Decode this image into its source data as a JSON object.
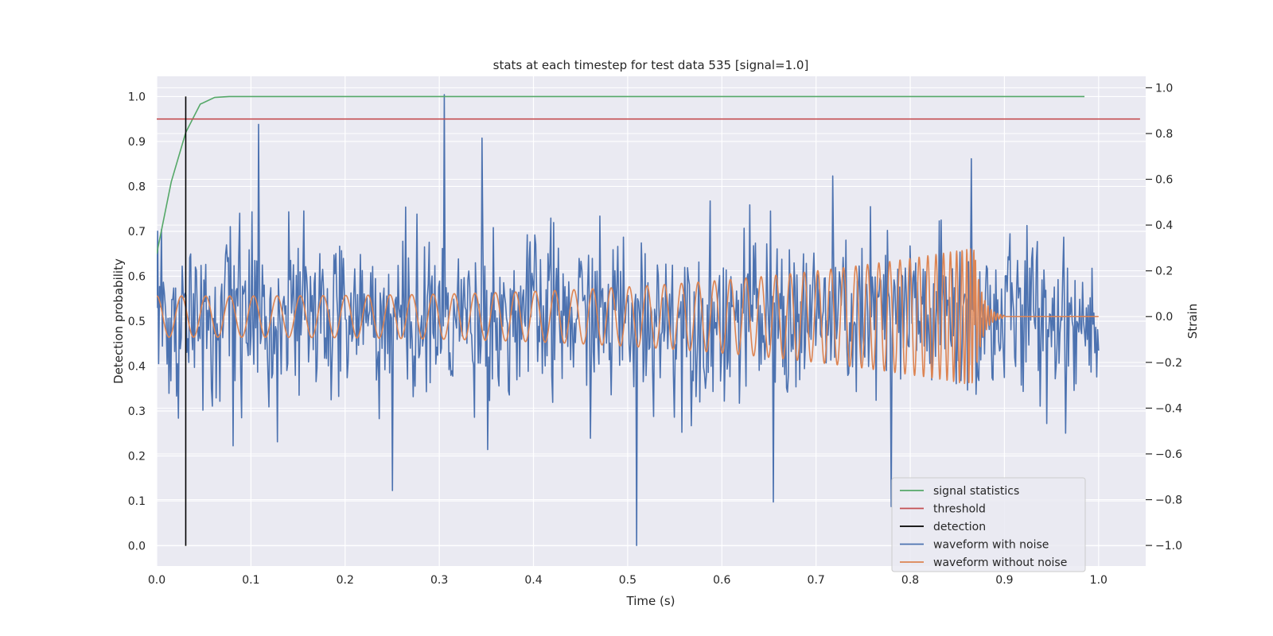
{
  "chart_data": {
    "type": "line",
    "title": "stats at each timestep for test data 535 [signal=1.0]",
    "xlabel": "Time (s)",
    "ylabel": "Detection probability",
    "ylabel_right": "Strain",
    "xlim": [
      0.0,
      1.05
    ],
    "ylim": [
      -0.045,
      1.045
    ],
    "ylim_right": [
      -1.09,
      1.05
    ],
    "x_ticks": [
      "0.0",
      "0.1",
      "0.2",
      "0.3",
      "0.4",
      "0.5",
      "0.6",
      "0.7",
      "0.8",
      "0.9",
      "1.0"
    ],
    "y_ticks": [
      "0.0",
      "0.1",
      "0.2",
      "0.3",
      "0.4",
      "0.5",
      "0.6",
      "0.7",
      "0.8",
      "0.9",
      "1.0"
    ],
    "y_ticks_right": [
      "−1.0",
      "−0.8",
      "−0.6",
      "−0.4",
      "−0.2",
      "0.0",
      "0.2",
      "0.4",
      "0.6",
      "0.8",
      "1.0"
    ],
    "grid": true,
    "legend_position": "lower-right",
    "series": [
      {
        "name": "signal statistics",
        "color": "#55a868",
        "axis": "left",
        "x": [
          0.0,
          0.0154,
          0.0308,
          0.0462,
          0.0615,
          0.0769,
          0.0923,
          0.2,
          0.4,
          0.6,
          0.8,
          0.985
        ],
        "values": [
          0.65,
          0.81,
          0.92,
          0.983,
          0.998,
          1.0,
          1.0,
          1.0,
          1.0,
          1.0,
          1.0,
          1.0
        ]
      },
      {
        "name": "threshold",
        "color": "#c44e52",
        "axis": "left",
        "x": [
          0.0,
          1.044
        ],
        "values": [
          0.95,
          0.95
        ]
      },
      {
        "name": "detection",
        "color": "#000000",
        "axis": "left",
        "x": [
          0.0308,
          0.0308
        ],
        "values": [
          0.0,
          1.0
        ]
      },
      {
        "name": "waveform with noise",
        "color": "#4c72b0",
        "axis": "right",
        "points": 1000,
        "x_range": [
          0.0,
          1.0
        ],
        "amplitude_typical": 0.3,
        "peaks": [
          {
            "x": 0.108,
            "y": 0.84
          },
          {
            "x": 0.305,
            "y": 0.97
          },
          {
            "x": 0.345,
            "y": 0.78
          },
          {
            "x": 0.51,
            "y": -1.0
          },
          {
            "x": 0.655,
            "y": -0.81
          },
          {
            "x": 0.78,
            "y": -0.83
          },
          {
            "x": 0.25,
            "y": -0.76
          },
          {
            "x": 0.865,
            "y": 0.69
          }
        ]
      },
      {
        "name": "waveform without noise",
        "color": "#dd8452",
        "axis": "right",
        "x_range": [
          0.0,
          1.0
        ],
        "description_points": {
          "amplitude_start": 0.09,
          "amplitude_near_merger": 0.3,
          "merger_x": 0.868,
          "min_at_merger": -0.37,
          "freq_start_hz": 40,
          "ringdown_end_x": 0.9,
          "flat_after": 0.0
        }
      }
    ]
  }
}
